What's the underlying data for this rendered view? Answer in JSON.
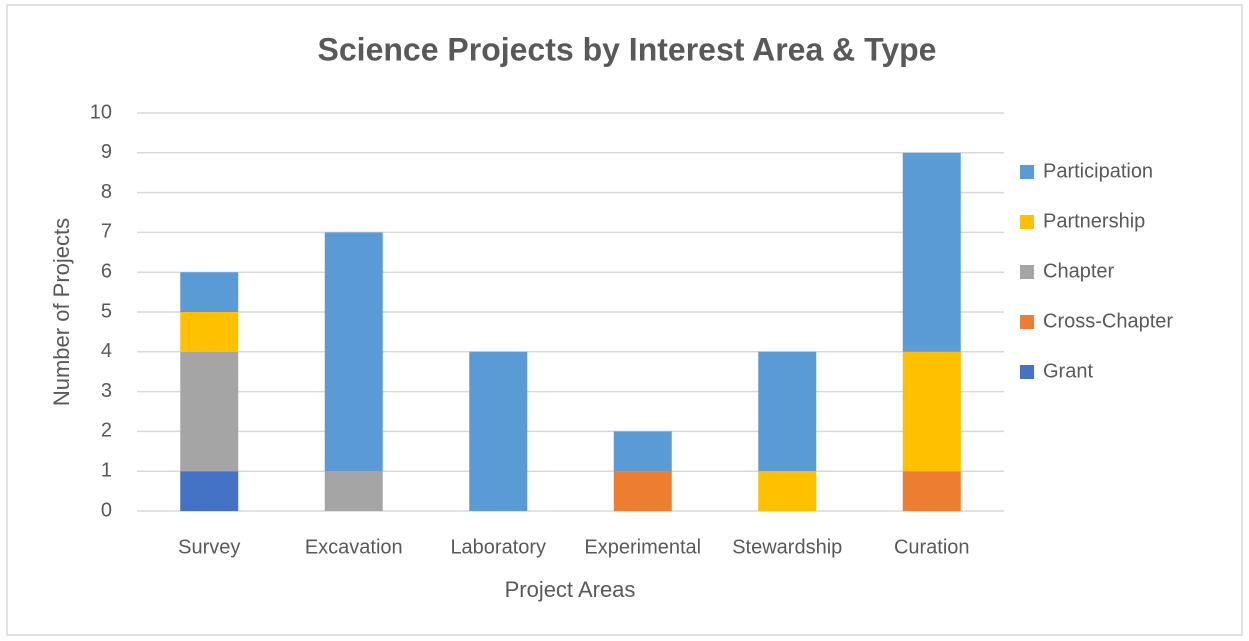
{
  "chart_data": {
    "type": "stacked_bar",
    "title": "Science Projects by Interest Area & Type",
    "x_label": "Project Areas",
    "y_label": "Number of Projects",
    "categories": [
      "Survey",
      "Excavation",
      "Laboratory",
      "Experimental",
      "Stewardship",
      "Curation"
    ],
    "series": [
      {
        "name": "Grant",
        "color": "#4472c4",
        "values": [
          1,
          0,
          0,
          0,
          0,
          0
        ]
      },
      {
        "name": "Cross-Chapter",
        "color": "#ed7d31",
        "values": [
          0,
          0,
          0,
          1,
          0,
          1
        ]
      },
      {
        "name": "Chapter",
        "color": "#a5a5a5",
        "values": [
          3,
          1,
          0,
          0,
          0,
          0
        ]
      },
      {
        "name": "Partnership",
        "color": "#ffc000",
        "values": [
          1,
          0,
          0,
          0,
          1,
          3
        ]
      },
      {
        "name": "Participation",
        "color": "#5b9bd5",
        "values": [
          1,
          6,
          4,
          1,
          3,
          5
        ]
      }
    ],
    "ylim": [
      0,
      10
    ],
    "yticks": [
      0,
      1,
      2,
      3,
      4,
      5,
      6,
      7,
      8,
      9,
      10
    ],
    "grid": true,
    "legend": "right"
  }
}
